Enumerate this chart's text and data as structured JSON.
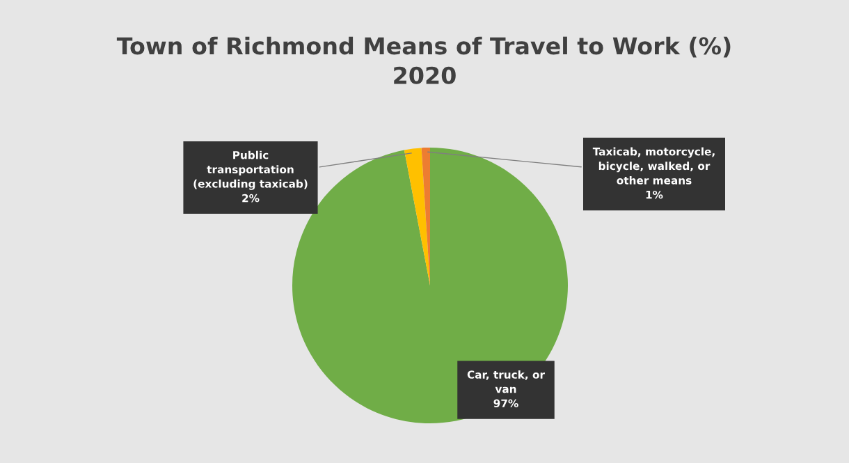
{
  "chart_data": {
    "type": "pie",
    "title": "Town of Richmond Means of Travel to Work (%)\n2020",
    "categories": [
      "Car, truck, or van",
      "Public transportation (excluding taxicab)",
      "Taxicab, motorcycle, bicycle, walked, or other means"
    ],
    "values": [
      97,
      2,
      1
    ],
    "colors": [
      "#70ad47",
      "#ffc000",
      "#ed7d31"
    ],
    "value_labels": [
      "97%",
      "2%",
      "1%"
    ],
    "legend": false
  }
}
